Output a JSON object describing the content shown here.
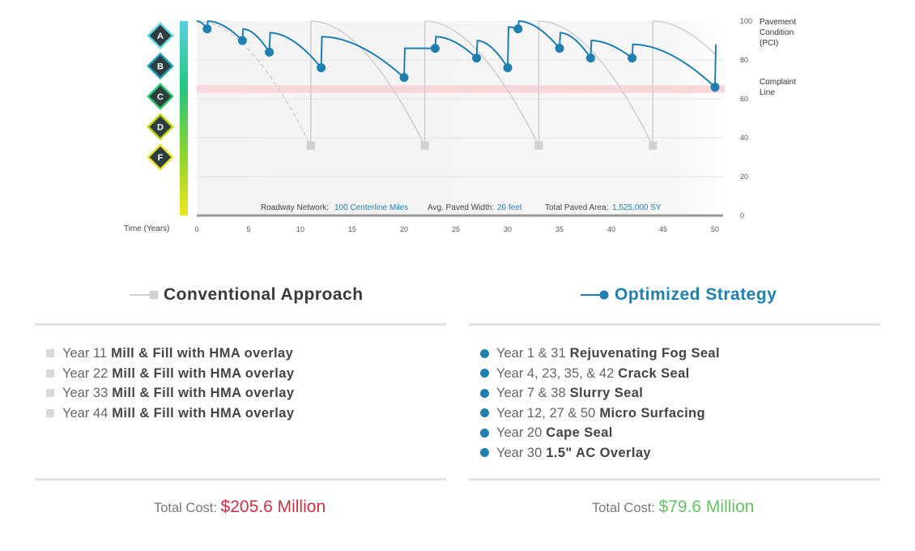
{
  "chart_data": {
    "type": "line",
    "xlabel": "Time (Years)",
    "x_ticks": [
      0,
      5,
      10,
      15,
      20,
      25,
      30,
      35,
      40,
      45,
      50
    ],
    "y_ticks": [
      0,
      20,
      40,
      60,
      80,
      100
    ],
    "ylabel": "Pavement Condition (PCI)",
    "xlim": [
      0,
      50
    ],
    "ylim": [
      0,
      100
    ],
    "grades": [
      "A",
      "B",
      "C",
      "D",
      "F"
    ],
    "grade_colors": [
      "#61d4e8",
      "#1c9fb3",
      "#26c36b",
      "#bfd000",
      "#eee02a"
    ],
    "complaint_line": {
      "label": "Complaint Line",
      "y_range": [
        63,
        67
      ],
      "color": "#f8d8da"
    },
    "series": [
      {
        "name": "Conventional Approach",
        "color": "#d0d0d0",
        "cycles": [
          {
            "start_x": 0,
            "start_y": 100,
            "end_x": 11,
            "end_y": 36
          },
          {
            "start_x": 11,
            "start_y": 100,
            "end_x": 22,
            "end_y": 36
          },
          {
            "start_x": 22,
            "start_y": 100,
            "end_x": 33,
            "end_y": 36
          },
          {
            "start_x": 33,
            "start_y": 100,
            "end_x": 44,
            "end_y": 36
          },
          {
            "start_x": 44,
            "start_y": 100,
            "end_x": 50,
            "end_y": 83
          }
        ],
        "markers": [
          {
            "x": 11,
            "y": 36
          },
          {
            "x": 22,
            "y": 36
          },
          {
            "x": 33,
            "y": 36
          },
          {
            "x": 44,
            "y": 36
          }
        ]
      },
      {
        "name": "Optimized Strategy",
        "color": "#1f7fb0",
        "start": {
          "x": 0,
          "y": 100
        },
        "points": [
          {
            "x": 1,
            "y": 96,
            "after": 100
          },
          {
            "x": 4.4,
            "y": 90,
            "after": 96
          },
          {
            "x": 7,
            "y": 84,
            "after": 94
          },
          {
            "x": 12,
            "y": 76,
            "after": 92
          },
          {
            "x": 20,
            "y": 71,
            "after": 86
          },
          {
            "x": 23,
            "y": 86,
            "after": 92
          },
          {
            "x": 27,
            "y": 81,
            "after": 90
          },
          {
            "x": 30,
            "y": 76,
            "after": 97
          },
          {
            "x": 31,
            "y": 96,
            "after": 100
          },
          {
            "x": 35,
            "y": 86,
            "after": 94
          },
          {
            "x": 38,
            "y": 81,
            "after": 90
          },
          {
            "x": 42,
            "y": 81,
            "after": 88
          },
          {
            "x": 50,
            "y": 66,
            "after": 88
          }
        ]
      }
    ],
    "info": {
      "network_label": "Roadway Network:",
      "network_value": "100 Centerline Miles",
      "width_label": "Avg. Paved Width:",
      "width_value": "26 feet",
      "area_label": "Total Paved Area:",
      "area_value": "1,525,000 SY"
    }
  },
  "conventional": {
    "title": "Conventional Approach",
    "items": [
      {
        "year": "Year 11",
        "treatment": "Mill & Fill with HMA overlay"
      },
      {
        "year": "Year 22",
        "treatment": "Mill & Fill with HMA overlay"
      },
      {
        "year": "Year 33",
        "treatment": "Mill & Fill with HMA overlay"
      },
      {
        "year": "Year 44",
        "treatment": "Mill & Fill with HMA overlay"
      }
    ],
    "total_label": "Total Cost:",
    "total_value": "$205.6 Million"
  },
  "optimized": {
    "title": "Optimized Strategy",
    "items": [
      {
        "year": "Year 1 & 31",
        "treatment": "Rejuvenating Fog Seal"
      },
      {
        "year": "Year 4, 23, 35, & 42",
        "treatment": "Crack Seal"
      },
      {
        "year": "Year 7 & 38",
        "treatment": "Slurry Seal"
      },
      {
        "year": "Year 12, 27 & 50",
        "treatment": "Micro Surfacing"
      },
      {
        "year": "Year 20",
        "treatment": "Cape Seal"
      },
      {
        "year": "Year 30",
        "treatment": "1.5\" AC Overlay"
      }
    ],
    "total_label": "Total Cost:",
    "total_value": "$79.6 Million"
  }
}
